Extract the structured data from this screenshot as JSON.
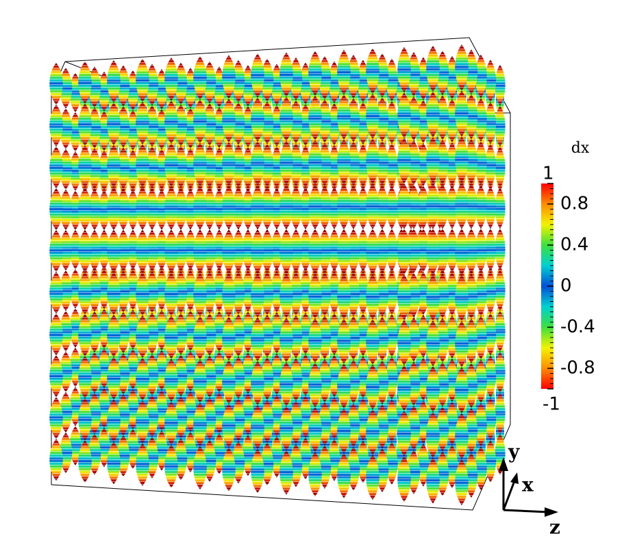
{
  "colorbar": {
    "title": "dx",
    "lim": [
      -1,
      1
    ],
    "ticks": [
      1,
      0.8,
      0.4,
      0,
      -0.4,
      -0.8,
      -1
    ],
    "colors": [
      "#ff0000",
      "#ff8c00",
      "#f2f200",
      "#3ee03e",
      "#00d0d0",
      "#0050d8",
      "#00d0d0",
      "#3ee03e",
      "#f2f200",
      "#ff8c00",
      "#ff0000"
    ]
  },
  "axes": {
    "y": "y",
    "x": "x",
    "z": "z"
  }
}
